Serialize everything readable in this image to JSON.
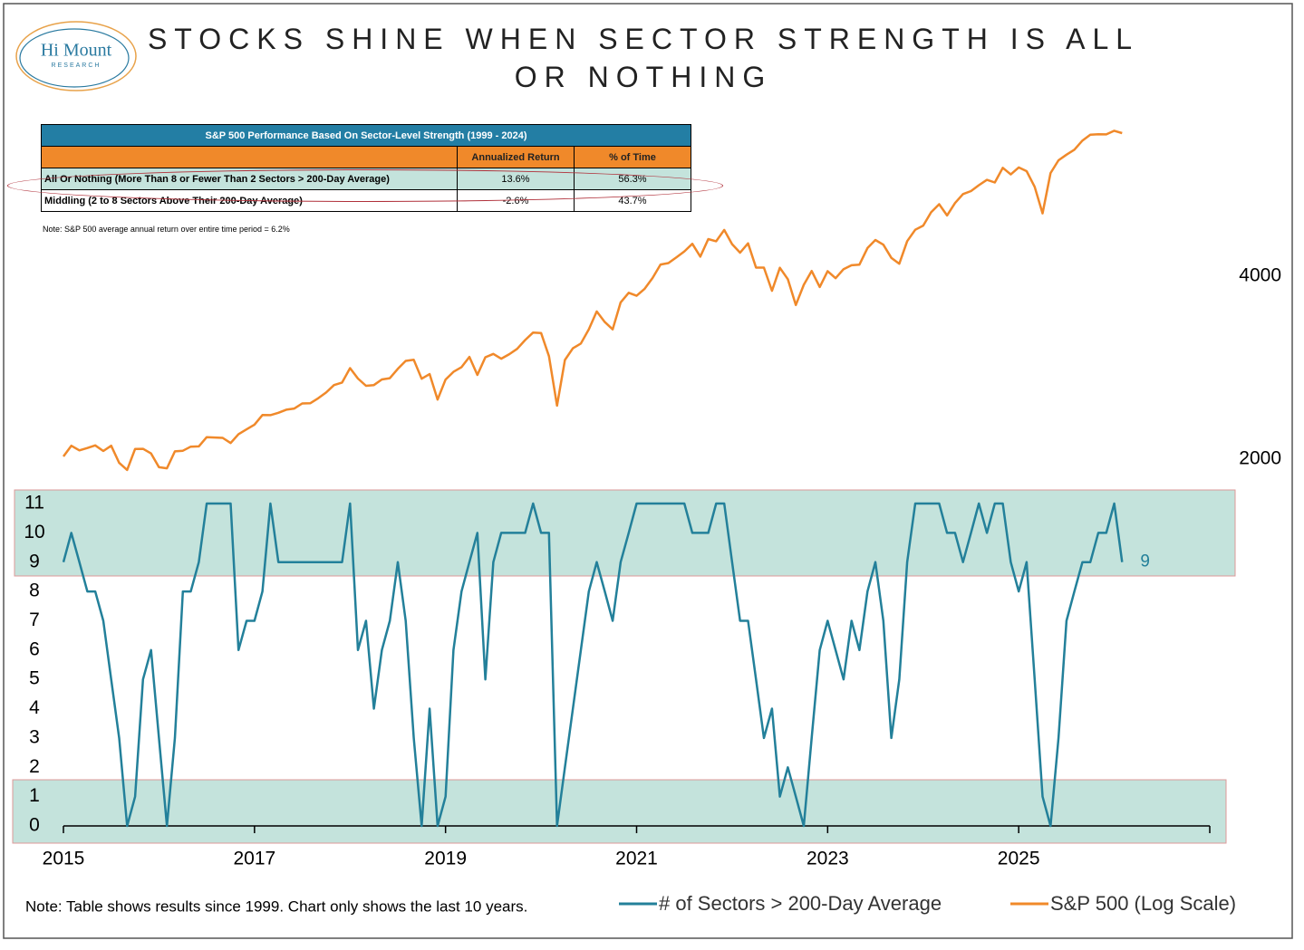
{
  "logo": {
    "name": "Hi Mount",
    "sub": "RESEARCH"
  },
  "table": {
    "title": "S&P 500 Performance Based On Sector-Level Strength (1999 - 2024)",
    "columns": [
      "Annualized Return",
      "% of Time"
    ],
    "rows": [
      [
        "All Or Nothing (More Than 8 or Fewer Than 2 Sectors > 200-Day Average)",
        "13.6%",
        "56.3%"
      ],
      [
        "Middling (2 to 8 Sectors Above Their 200-Day Average)",
        "-2.6%",
        "43.7%"
      ]
    ],
    "note": "Note: S&P 500 average annual return over entire time period = 6.2%"
  },
  "chart_data": {
    "type": "line",
    "title": "STOCKS SHINE WHEN SECTOR STRENGTH IS ALL OR NOTHING",
    "note": "Note: Table shows results since 1999. Chart only shows the last 10 years.",
    "x": [
      2015,
      2015.083,
      2015.167,
      2015.25,
      2015.333,
      2015.417,
      2015.5,
      2015.583,
      2015.667,
      2015.75,
      2015.833,
      2015.917,
      2016,
      2016.083,
      2016.167,
      2016.25,
      2016.333,
      2016.417,
      2016.5,
      2016.583,
      2016.667,
      2016.75,
      2016.833,
      2016.917,
      2017,
      2017.083,
      2017.167,
      2017.25,
      2017.333,
      2017.417,
      2017.5,
      2017.583,
      2017.667,
      2017.75,
      2017.833,
      2017.917,
      2018,
      2018.083,
      2018.167,
      2018.25,
      2018.333,
      2018.417,
      2018.5,
      2018.583,
      2018.667,
      2018.75,
      2018.833,
      2018.917,
      2019,
      2019.083,
      2019.167,
      2019.25,
      2019.333,
      2019.417,
      2019.5,
      2019.583,
      2019.667,
      2019.75,
      2019.833,
      2019.917,
      2020,
      2020.083,
      2020.167,
      2020.25,
      2020.333,
      2020.417,
      2020.5,
      2020.583,
      2020.667,
      2020.75,
      2020.833,
      2020.917,
      2021,
      2021.083,
      2021.167,
      2021.25,
      2021.333,
      2021.417,
      2021.5,
      2021.583,
      2021.667,
      2021.75,
      2021.833,
      2021.917,
      2022,
      2022.083,
      2022.167,
      2022.25,
      2022.333,
      2022.417,
      2022.5,
      2022.583,
      2022.667,
      2022.75,
      2022.833,
      2022.917,
      2023,
      2023.083,
      2023.167,
      2023.25,
      2023.333,
      2023.417,
      2023.5,
      2023.583,
      2023.667,
      2023.75,
      2023.833,
      2023.917,
      2024,
      2024.083,
      2024.167,
      2024.25,
      2024.333,
      2024.417,
      2024.5,
      2024.583,
      2024.667,
      2024.75,
      2024.833,
      2024.917,
      2025,
      2025.083,
      2025.167,
      2025.25,
      2025.333,
      2025.417,
      2025.5,
      2025.583,
      2025.667,
      2025.75,
      2025.833,
      2025.917,
      2026,
      2026.083
    ],
    "series": [
      {
        "name": "# of Sectors > 200-Day Average",
        "color": "#23809a",
        "values": [
          9,
          10,
          9,
          8,
          8,
          7,
          5,
          3,
          0,
          1,
          5,
          6,
          3,
          0,
          3,
          8,
          8,
          9,
          11,
          11,
          11,
          11,
          6,
          7,
          7,
          8,
          11,
          9,
          9,
          9,
          9,
          9,
          9,
          9,
          9,
          9,
          11,
          6,
          7,
          4,
          6,
          7,
          9,
          7,
          3,
          0,
          4,
          0,
          1,
          6,
          8,
          9,
          10,
          5,
          9,
          10,
          10,
          10,
          10,
          11,
          10,
          10,
          0,
          2,
          4,
          6,
          8,
          9,
          8,
          7,
          9,
          10,
          11,
          11,
          11,
          11,
          11,
          11,
          11,
          10,
          10,
          10,
          11,
          11,
          9,
          7,
          7,
          5,
          3,
          4,
          1,
          2,
          1,
          0,
          3,
          6,
          7,
          6,
          5,
          7,
          6,
          8,
          9,
          7,
          3,
          5,
          9,
          11,
          11,
          11,
          11,
          10,
          10,
          9,
          10,
          11,
          10,
          11,
          11,
          9,
          8,
          9,
          5,
          1,
          0,
          3,
          7,
          8,
          9,
          9,
          10,
          10,
          11,
          9
        ]
      },
      {
        "name": "S&P 500 (Log Scale)",
        "color": "#f0892a",
        "axis": "y2",
        "values": [
          2021,
          2104,
          2068,
          2086,
          2107,
          2063,
          2104,
          1972,
          1920,
          2079,
          2080,
          2044,
          1940,
          1932,
          2060,
          2065,
          2097,
          2099,
          2174,
          2171,
          2168,
          2126,
          2199,
          2239,
          2279,
          2364,
          2363,
          2384,
          2412,
          2423,
          2470,
          2472,
          2519,
          2575,
          2648,
          2674,
          2824,
          2714,
          2641,
          2648,
          2705,
          2718,
          2816,
          2902,
          2914,
          2712,
          2760,
          2507,
          2704,
          2784,
          2834,
          2946,
          2752,
          2942,
          2980,
          2926,
          2977,
          3038,
          3141,
          3231,
          3226,
          2954,
          2450,
          2912,
          3044,
          3100,
          3271,
          3500,
          3363,
          3270,
          3622,
          3756,
          3714,
          3811,
          3973,
          4181,
          4204,
          4298,
          4395,
          4523,
          4308,
          4605,
          4567,
          4766,
          4516,
          4374,
          4530,
          4132,
          4132,
          3785,
          4130,
          3955,
          3586,
          3872,
          4080,
          3840,
          4077,
          3970,
          4109,
          4169,
          4180,
          4450,
          4589,
          4508,
          4288,
          4194,
          4568,
          4770,
          4846,
          5096,
          5254,
          5036,
          5278,
          5460,
          5522,
          5648,
          5762,
          5705,
          6032,
          5882,
          6041,
          5955,
          5612,
          5075,
          5912,
          6205,
          6339,
          6460,
          6688,
          6840,
          6849,
          6845,
          6940,
          6880
        ]
      }
    ],
    "xlim": [
      2015,
      2027
    ],
    "xticks": [
      2015,
      2017,
      2019,
      2021,
      2023,
      2025
    ],
    "ylim": [
      0,
      11
    ],
    "yticks": [
      0,
      1,
      2,
      3,
      4,
      5,
      6,
      7,
      8,
      9,
      10,
      11
    ],
    "y2lim": [
      2000,
      8000
    ],
    "y2ticks": [
      2000,
      4000
    ],
    "y2log": true
  }
}
